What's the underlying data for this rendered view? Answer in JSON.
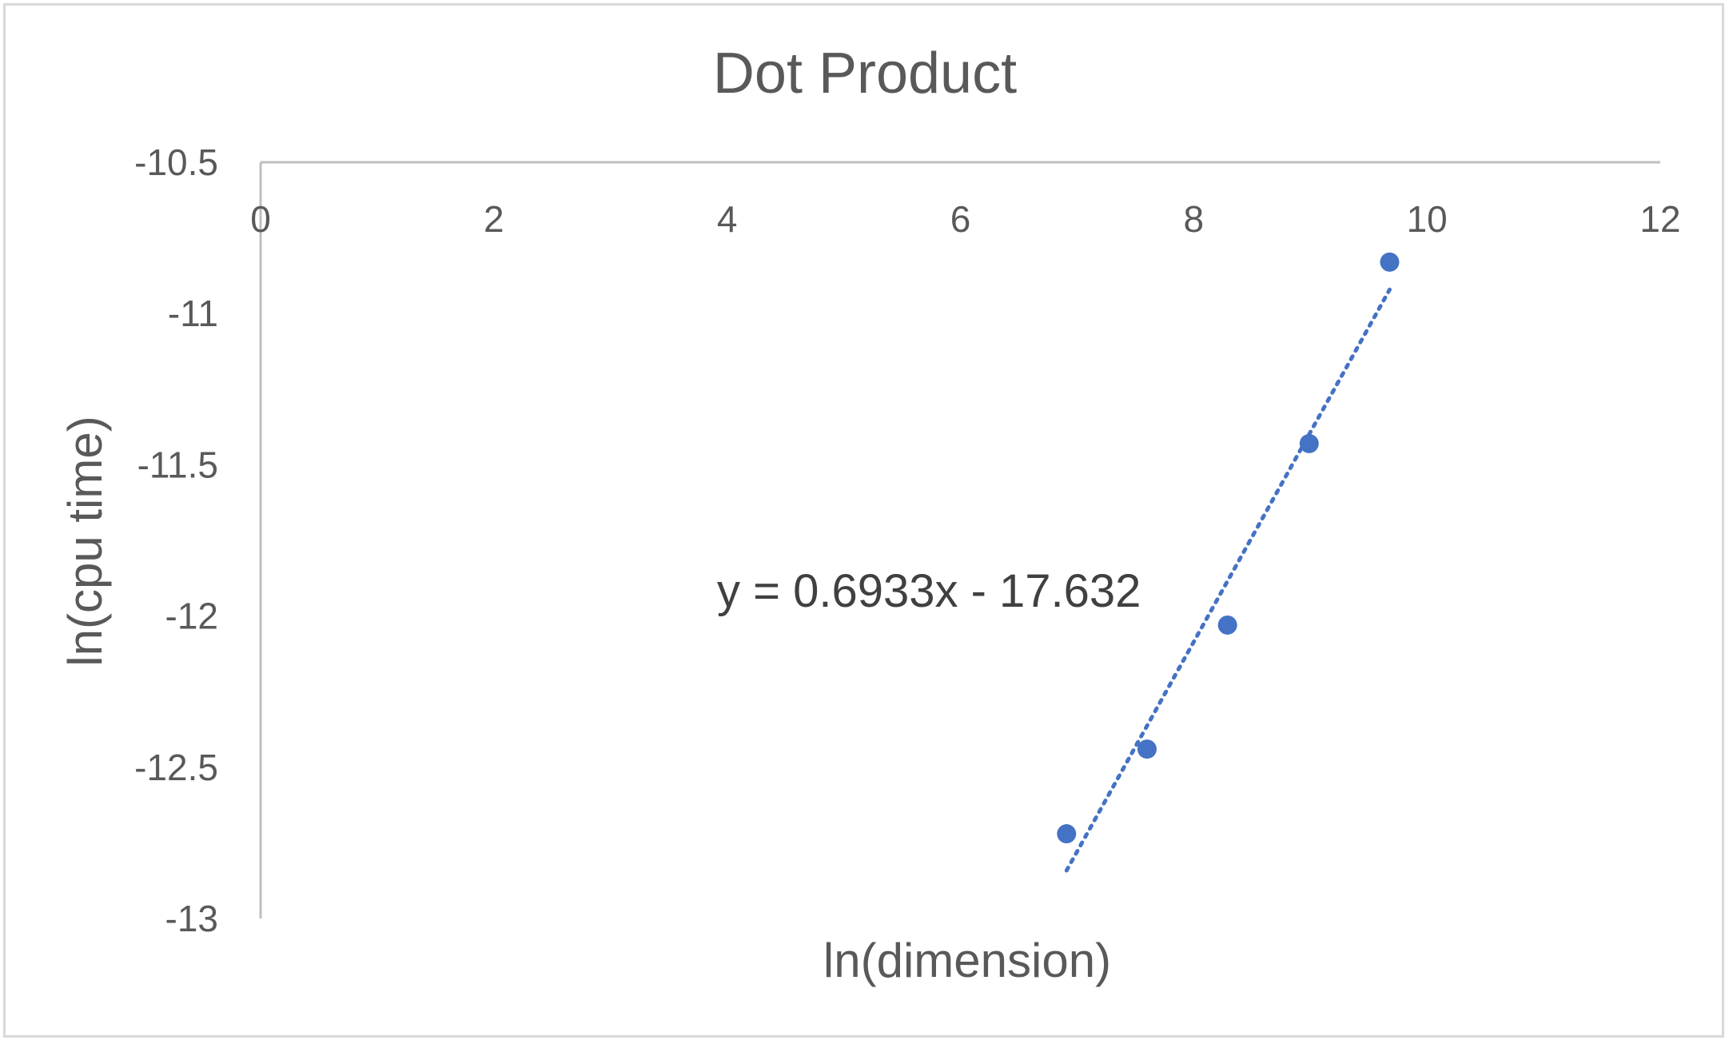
{
  "chart_data": {
    "type": "scatter",
    "title": "Dot Product",
    "xlabel": "ln(dimension)",
    "ylabel": "ln(cpu time)",
    "xlim": [
      0,
      12
    ],
    "ylim": [
      -13,
      -10.5
    ],
    "x_ticks": [
      0,
      2,
      4,
      6,
      8,
      10,
      12
    ],
    "y_ticks": [
      -10.5,
      -11,
      -11.5,
      -12,
      -12.5,
      -13
    ],
    "x_tick_labels": [
      "0",
      "2",
      "4",
      "6",
      "8",
      "10",
      "12"
    ],
    "y_tick_labels": [
      "-10.5",
      "-11",
      "-11.5",
      "-12",
      "-12.5",
      "-13"
    ],
    "x_axis_position": "top",
    "grid": false,
    "legend": "none",
    "series": [
      {
        "x": [
          6.91,
          7.6,
          8.29,
          8.99,
          9.68
        ],
        "y": [
          -12.72,
          -12.44,
          -12.03,
          -11.43,
          -10.83
        ],
        "color": "#4472C4"
      }
    ],
    "trendline": {
      "type": "linear",
      "slope": 0.6933,
      "intercept": -17.632,
      "x_range": [
        6.91,
        9.68
      ],
      "style": "dotted",
      "color": "#4472C4",
      "equation_label": "y = 0.6933x - 17.632"
    }
  }
}
